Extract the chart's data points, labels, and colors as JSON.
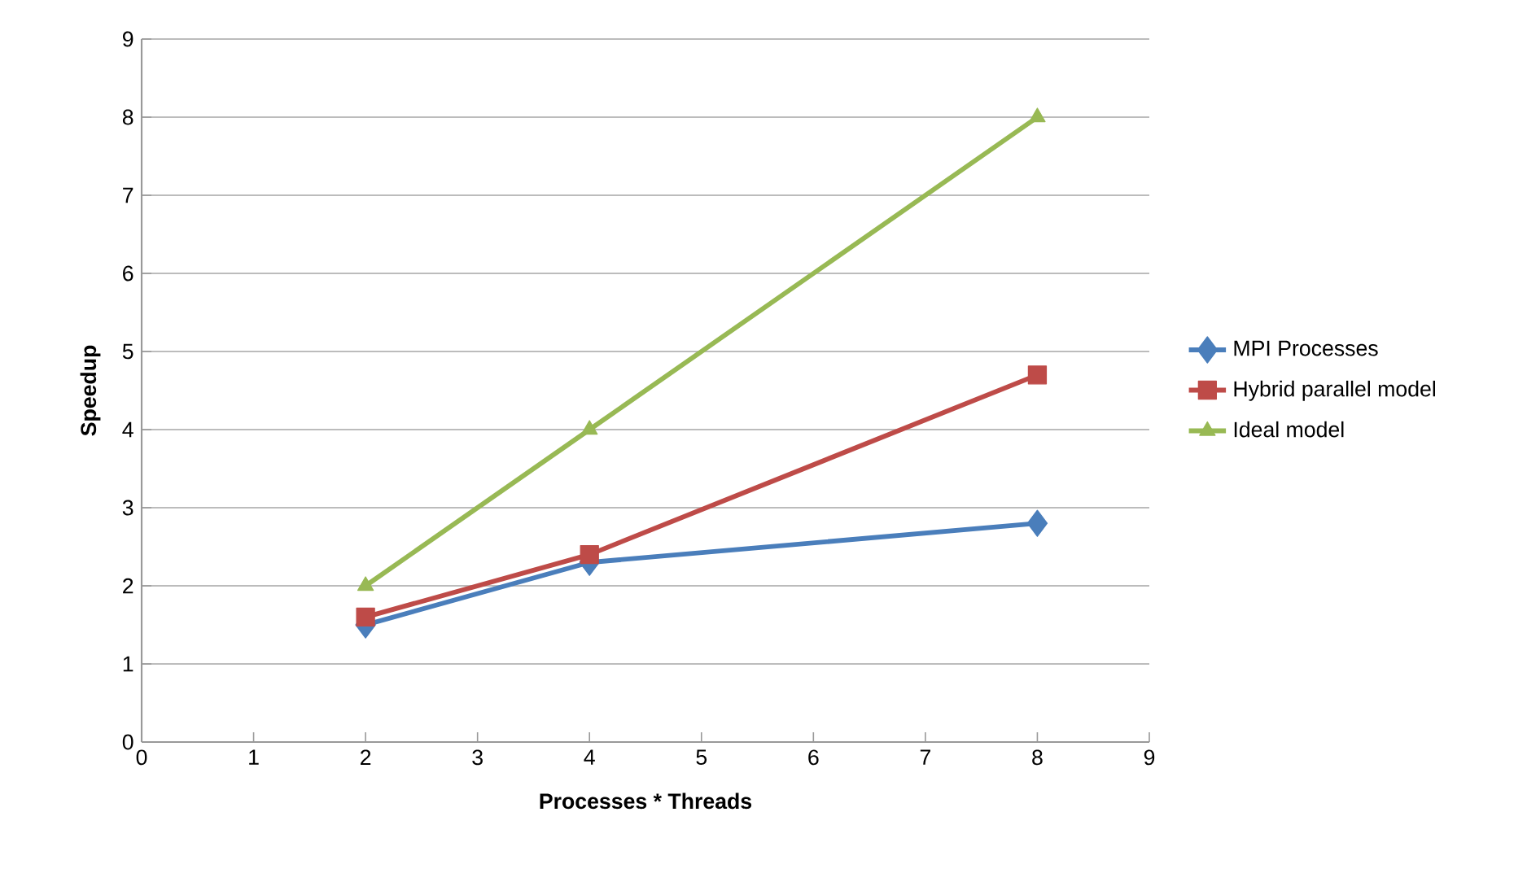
{
  "chart_data": {
    "type": "line",
    "xlabel": "Processes * Threads",
    "ylabel": "Speedup",
    "x": [
      2,
      4,
      8
    ],
    "series": [
      {
        "name": "MPI Processes",
        "color": "#4a7ebb",
        "values": [
          1.5,
          2.3,
          2.8
        ],
        "marker": "diamond"
      },
      {
        "name": "Hybrid parallel model",
        "color": "#be4b48",
        "values": [
          1.6,
          2.4,
          4.7
        ],
        "marker": "square"
      },
      {
        "name": "Ideal model",
        "color": "#98b954",
        "values": [
          2,
          4,
          8
        ],
        "marker": "triangle"
      }
    ],
    "xlim": [
      0,
      9
    ],
    "ylim": [
      0,
      9
    ],
    "xticks": [
      0,
      1,
      2,
      3,
      4,
      5,
      6,
      7,
      8,
      9
    ],
    "yticks": [
      0,
      1,
      2,
      3,
      4,
      5,
      6,
      7,
      8,
      9
    ],
    "grid": "y",
    "legend": "right",
    "line_style": "solid"
  }
}
